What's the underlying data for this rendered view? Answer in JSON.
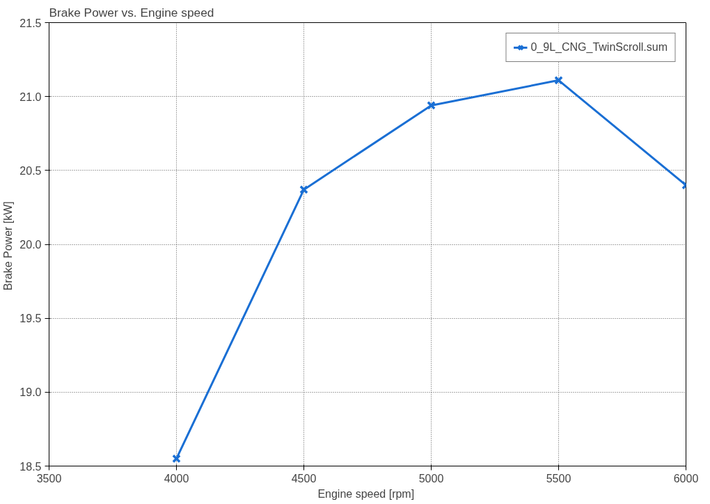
{
  "chart_data": {
    "type": "line",
    "title": "Brake Power vs. Engine speed",
    "xlabel": "Engine speed  [rpm]",
    "ylabel": "Brake Power  [kW]",
    "x": [
      4000,
      4500,
      5000,
      5500,
      6000
    ],
    "series": [
      {
        "name": "0_9L_CNG_TwinScroll.sum",
        "color": "#1a6fd4",
        "values": [
          18.55,
          20.37,
          20.94,
          21.11,
          20.4
        ]
      }
    ],
    "xlim": [
      3500,
      6000
    ],
    "xticks": [
      3500,
      4000,
      4500,
      5000,
      5500,
      6000
    ],
    "ylim": [
      18.5,
      21.5
    ],
    "yticks": [
      {
        "value": 18.5,
        "label": "18.5"
      },
      {
        "value": 19,
        "label": "19.0"
      },
      {
        "value": 19.5,
        "label": "19.5"
      },
      {
        "value": 20,
        "label": "20.0"
      },
      {
        "value": 20.5,
        "label": "20.5"
      },
      {
        "value": 21,
        "label": "21.0"
      },
      {
        "value": 21.5,
        "label": "21.5"
      }
    ],
    "grid": true,
    "legend": "top right",
    "marker": "cross",
    "line_style": "solid"
  }
}
